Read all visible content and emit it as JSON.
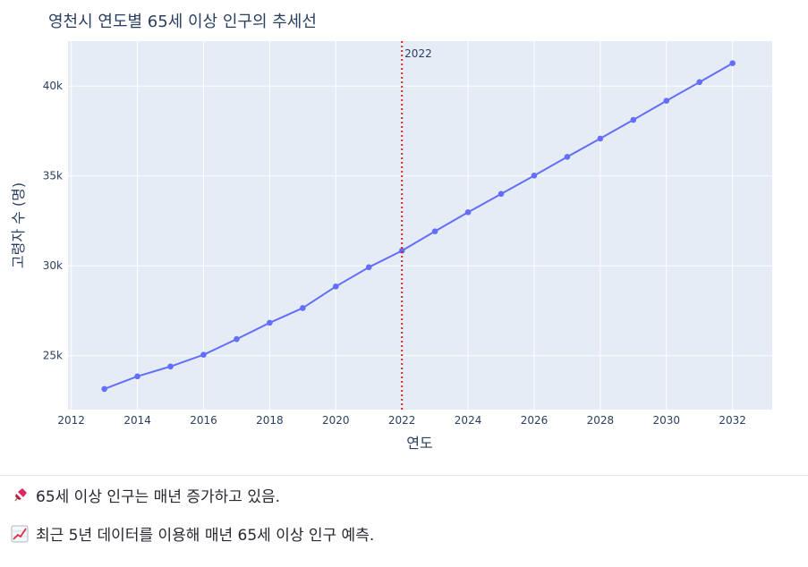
{
  "chart_data": {
    "type": "line",
    "title": "영천시 연도별 65세 이상 인구의 추세선",
    "xlabel": "연도",
    "ylabel": "고령자 수 (명)",
    "x": [
      2013,
      2014,
      2015,
      2016,
      2017,
      2018,
      2019,
      2020,
      2021,
      2022,
      2023,
      2024,
      2025,
      2026,
      2027,
      2028,
      2029,
      2030,
      2031,
      2032
    ],
    "series": [
      {
        "values": [
          23150,
          23850,
          24400,
          25050,
          25920,
          26830,
          27650,
          28850,
          29920,
          30840,
          31920,
          32980,
          34000,
          35020,
          36060,
          37080,
          38120,
          39180,
          40220,
          41270
        ]
      }
    ],
    "xlim": [
      2011.9,
      2033.2
    ],
    "ylim": [
      22000,
      42500
    ],
    "x_ticks": [
      2012,
      2014,
      2016,
      2018,
      2020,
      2022,
      2024,
      2026,
      2028,
      2030,
      2032
    ],
    "x_tick_labels": [
      "2012",
      "2014",
      "2016",
      "2018",
      "2020",
      "2022",
      "2024",
      "2026",
      "2028",
      "2030",
      "2032"
    ],
    "y_ticks": [
      25000,
      30000,
      35000,
      40000
    ],
    "y_tick_labels": [
      "25k",
      "30k",
      "35k",
      "40k"
    ],
    "vline": {
      "x": 2022,
      "label": "2022",
      "color": "#d62728"
    },
    "grid": true,
    "colors": {
      "line": "#636efa",
      "plot_bg": "#e5ecf6",
      "grid": "#ffffff",
      "text": "#2a3f5f"
    }
  },
  "notes": {
    "forecast_trend": "65세 이상 인구는 매년 증가하고 있음.",
    "method": "최근 5년 데이터를 이용해 매년 65세 이상 인구 예측.",
    "forecast_icon": "pushpin-icon",
    "method_icon": "chart-increasing-icon"
  }
}
